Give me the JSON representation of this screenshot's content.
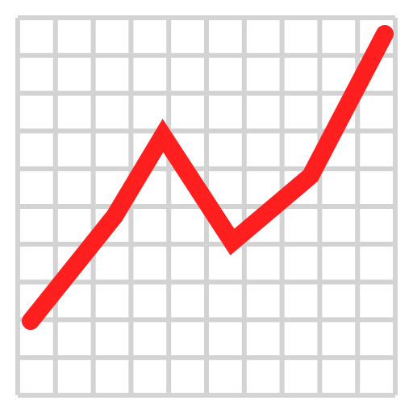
{
  "icon": {
    "name": "chart-increasing-icon",
    "grid": {
      "columns": 10,
      "rows": 10,
      "line_color": "#D3D3D3",
      "background_color": "#FFFFFF"
    },
    "trend_line": {
      "color": "#FF1F1F",
      "shape": "rising zigzag"
    }
  }
}
